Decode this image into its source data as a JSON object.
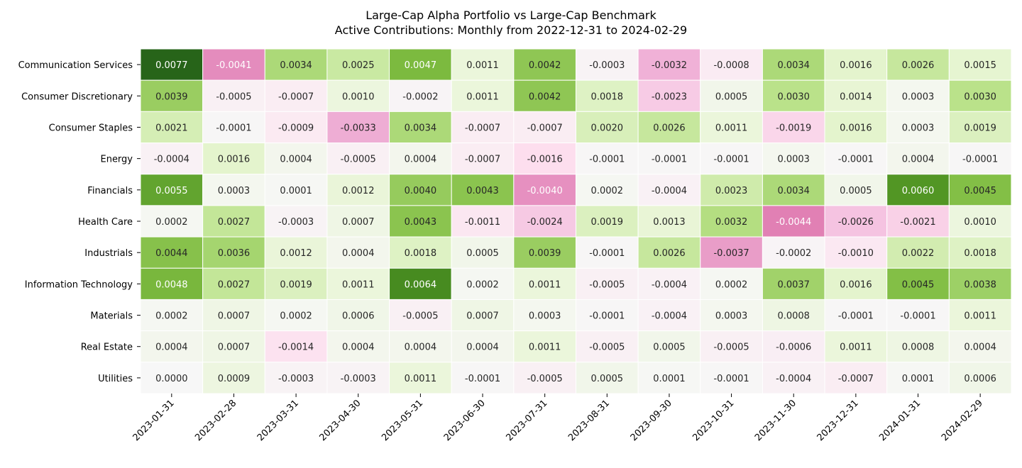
{
  "chart_data": {
    "type": "heatmap",
    "title": "Large-Cap Alpha Portfolio vs Large-Cap Benchmark",
    "subtitle": "Active Contributions: Monthly from 2022-12-31 to 2024-02-29",
    "xlabel": "",
    "ylabel": "",
    "colormap": "PiYG",
    "color_limits": [
      -0.0077,
      0.0077
    ],
    "colors": {
      "negative": "#c51b7d",
      "neutral": "#f7f7f7",
      "positive": "#276419"
    },
    "colorbar": false,
    "columns": [
      "2023-01-31",
      "2023-02-28",
      "2023-03-31",
      "2023-04-30",
      "2023-05-31",
      "2023-06-30",
      "2023-07-31",
      "2023-08-31",
      "2023-09-30",
      "2023-10-31",
      "2023-11-30",
      "2023-12-31",
      "2024-01-31",
      "2024-02-29"
    ],
    "rows": [
      "Communication Services",
      "Consumer Discretionary",
      "Consumer Staples",
      "Energy",
      "Financials",
      "Health Care",
      "Industrials",
      "Information Technology",
      "Materials",
      "Real Estate",
      "Utilities"
    ],
    "values": [
      [
        0.0077,
        -0.0041,
        0.0034,
        0.0025,
        0.0047,
        0.0011,
        0.0042,
        -0.0003,
        -0.0032,
        -0.0008,
        0.0034,
        0.0016,
        0.0026,
        0.0015
      ],
      [
        0.0039,
        -0.0005,
        -0.0007,
        0.001,
        -0.0002,
        0.0011,
        0.0042,
        0.0018,
        -0.0023,
        0.0005,
        0.003,
        0.0014,
        0.0003,
        0.003
      ],
      [
        0.0021,
        -0.0001,
        -0.0009,
        -0.0033,
        0.0034,
        -0.0007,
        -0.0007,
        0.002,
        0.0026,
        0.0011,
        -0.0019,
        0.0016,
        0.0003,
        0.0019
      ],
      [
        -0.0004,
        0.0016,
        0.0004,
        -0.0005,
        0.0004,
        -0.0007,
        -0.0016,
        -0.0001,
        -0.0001,
        -0.0001,
        0.0003,
        -0.0001,
        0.0004,
        -0.0001
      ],
      [
        0.0055,
        0.0003,
        0.0001,
        0.0012,
        0.004,
        0.0043,
        -0.004,
        0.0002,
        -0.0004,
        0.0023,
        0.0034,
        0.0005,
        0.006,
        0.0045
      ],
      [
        0.0002,
        0.0027,
        -0.0003,
        0.0007,
        0.0043,
        -0.0011,
        -0.0024,
        0.0019,
        0.0013,
        0.0032,
        -0.0044,
        -0.0026,
        -0.0021,
        0.001
      ],
      [
        0.0044,
        0.0036,
        0.0012,
        0.0004,
        0.0018,
        0.0005,
        0.0039,
        -0.0001,
        0.0026,
        -0.0037,
        -0.0002,
        -0.001,
        0.0022,
        0.0018
      ],
      [
        0.0048,
        0.0027,
        0.0019,
        0.0011,
        0.0064,
        0.0002,
        0.0011,
        -0.0005,
        -0.0004,
        0.0002,
        0.0037,
        0.0016,
        0.0045,
        0.0038
      ],
      [
        0.0002,
        0.0007,
        0.0002,
        0.0006,
        -0.0005,
        0.0007,
        0.0003,
        -0.0001,
        -0.0004,
        0.0003,
        0.0008,
        -0.0001,
        -0.0001,
        0.0011
      ],
      [
        0.0004,
        0.0007,
        -0.0014,
        0.0004,
        0.0004,
        0.0004,
        0.0011,
        -0.0005,
        0.0005,
        -0.0005,
        -0.0006,
        0.0011,
        0.0008,
        0.0004
      ],
      [
        0.0,
        0.0009,
        -0.0003,
        -0.0003,
        0.0011,
        -0.0001,
        -0.0005,
        0.0005,
        0.0001,
        -0.0001,
        -0.0004,
        -0.0007,
        0.0001,
        0.0006
      ]
    ],
    "cell_label_format": "4 decimals",
    "cell_borders": "white",
    "grid": false,
    "legend": "none"
  }
}
